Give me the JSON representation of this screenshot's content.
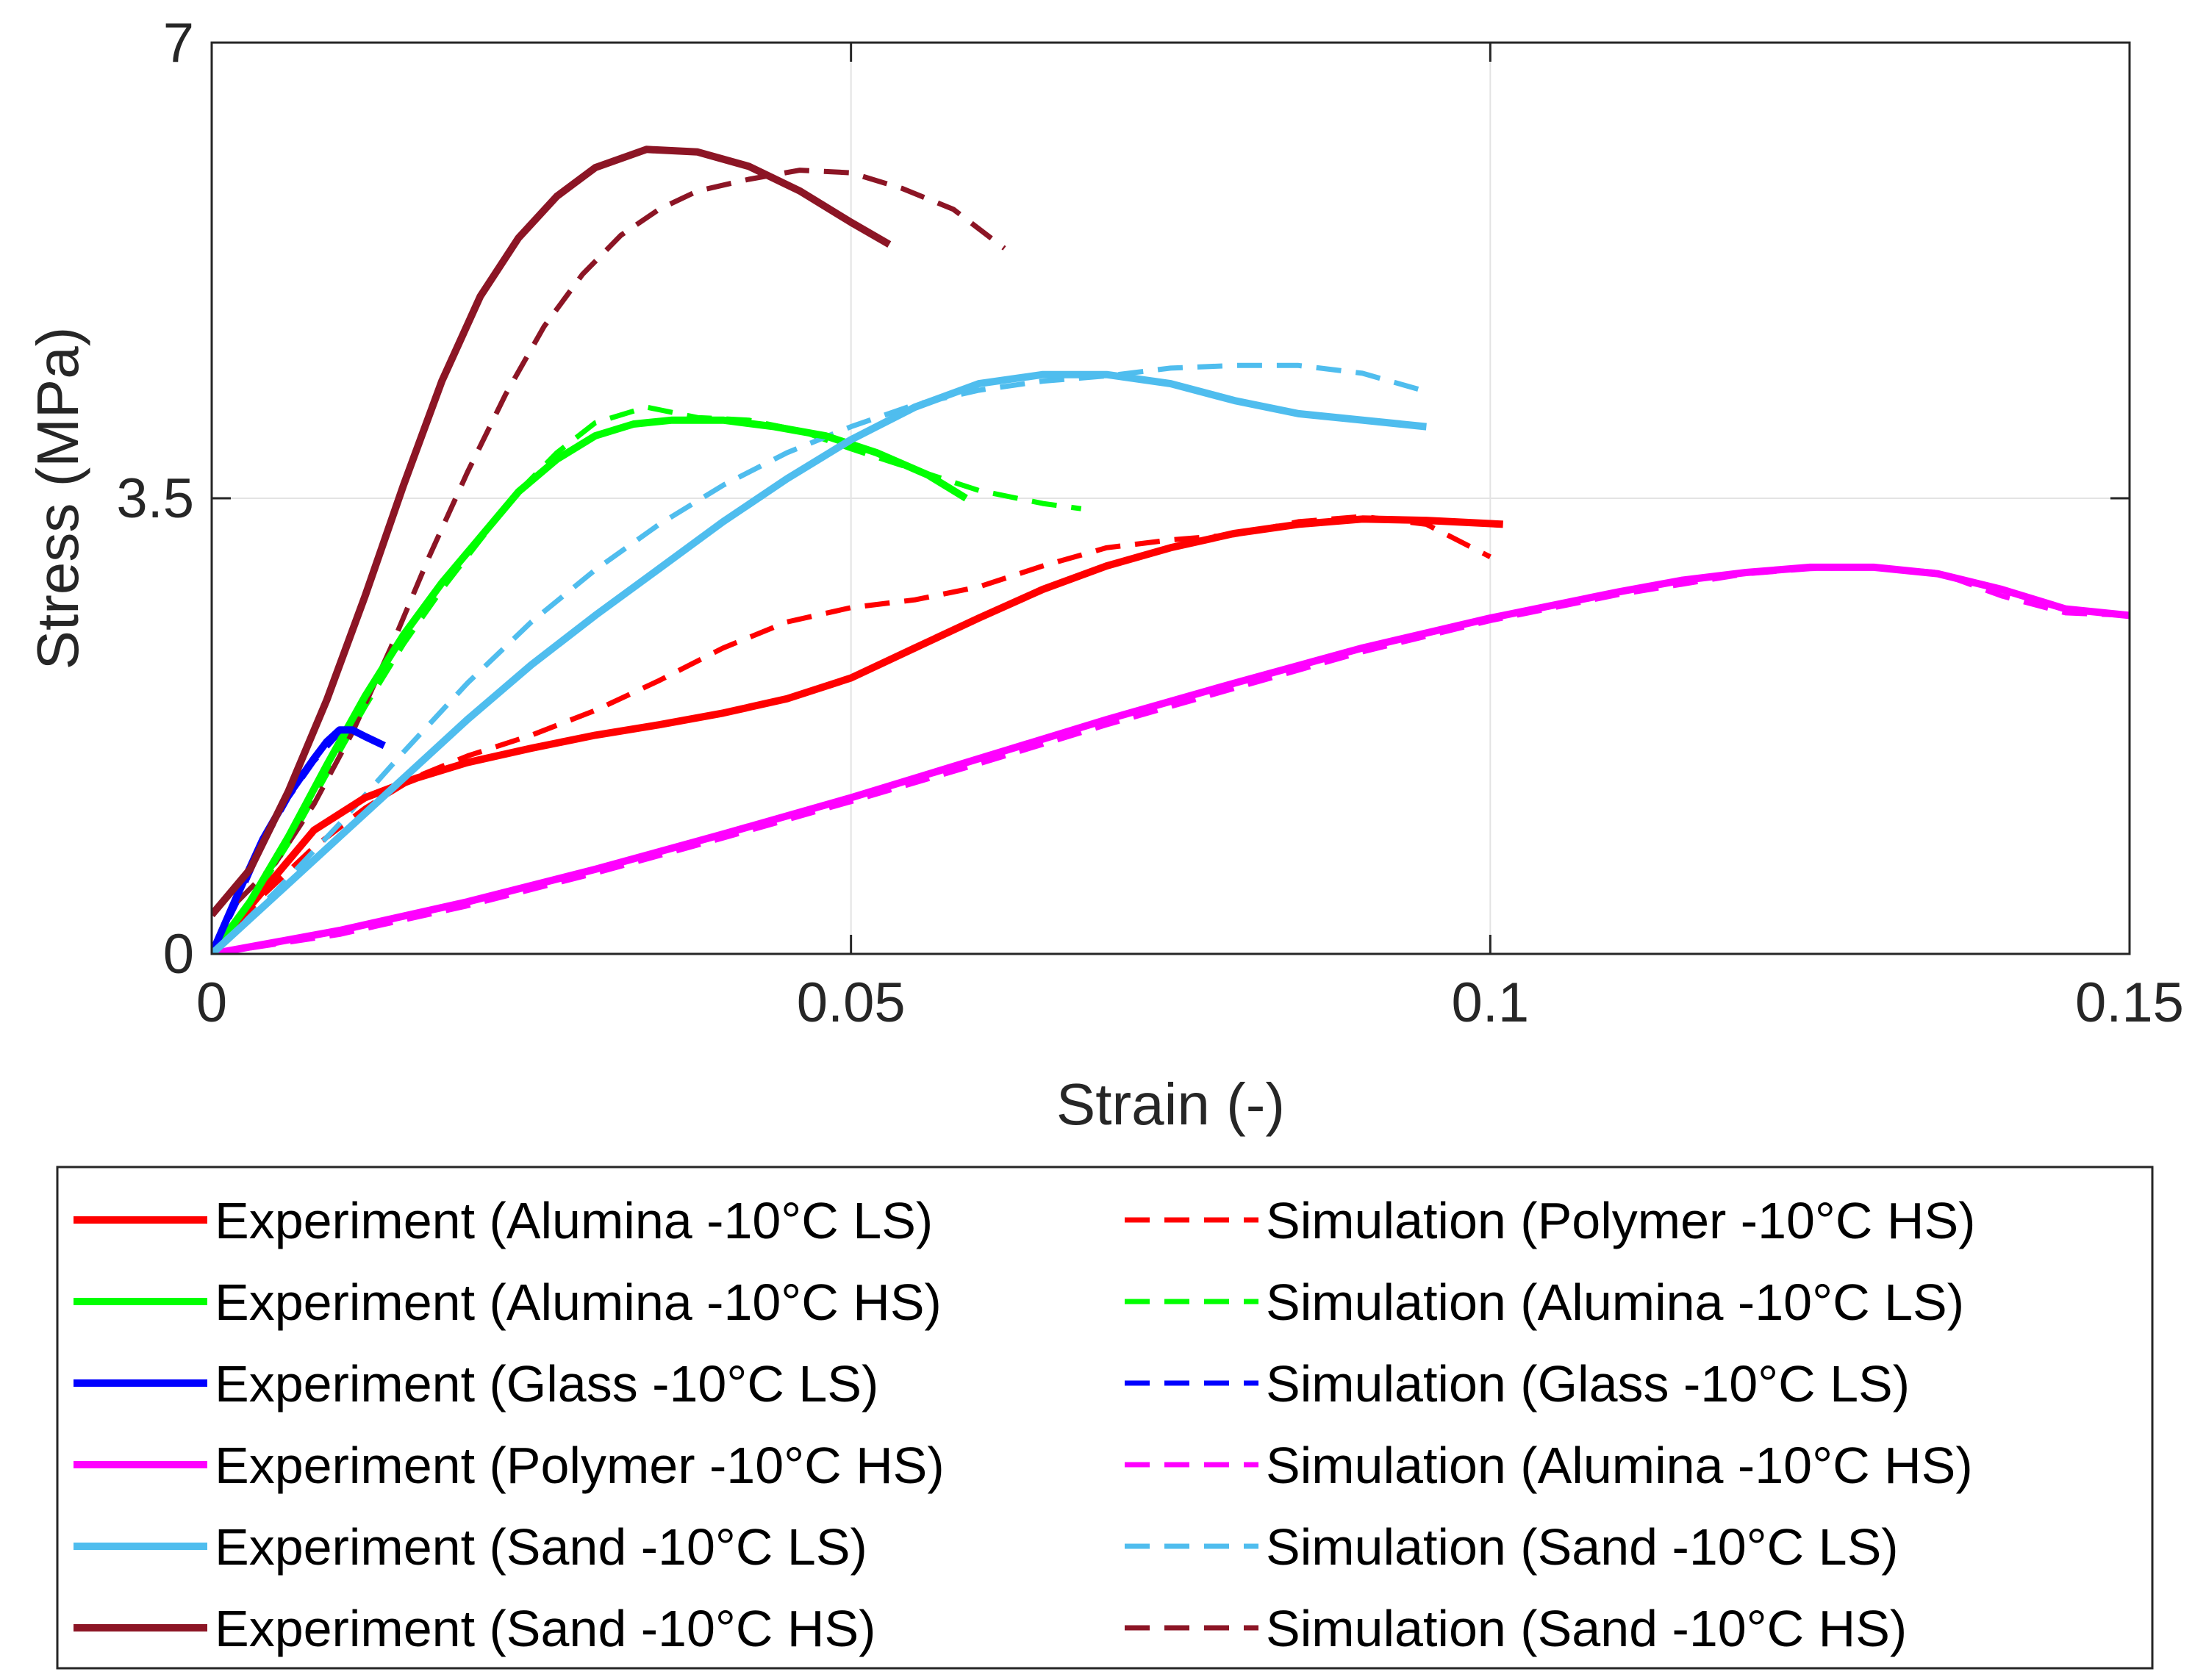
{
  "chart_data": {
    "type": "line",
    "xlabel": "Strain (-)",
    "ylabel": "Stress (MPa)",
    "xlim": [
      0,
      0.15
    ],
    "ylim": [
      0,
      7
    ],
    "xticks": [
      0,
      0.05,
      0.1,
      0.15
    ],
    "xtick_labels": [
      "0",
      "0.05",
      "0.1",
      "0.15"
    ],
    "yticks": [
      0,
      3.5,
      7
    ],
    "ytick_labels": [
      "0",
      "3.5",
      "7"
    ],
    "grid": true,
    "legend_position": "bottom",
    "series": [
      {
        "name": "Experiment (Alumina -10°C LS)",
        "color": "#ff0000",
        "style": "solid",
        "x": [
          0,
          0.002,
          0.005,
          0.008,
          0.012,
          0.016,
          0.02,
          0.025,
          0.03,
          0.035,
          0.04,
          0.045,
          0.05,
          0.055,
          0.06,
          0.065,
          0.07,
          0.075,
          0.08,
          0.085,
          0.09,
          0.095,
          0.101
        ],
        "y": [
          0,
          0.25,
          0.6,
          0.95,
          1.2,
          1.35,
          1.47,
          1.58,
          1.68,
          1.76,
          1.85,
          1.96,
          2.12,
          2.35,
          2.58,
          2.8,
          2.98,
          3.12,
          3.23,
          3.3,
          3.34,
          3.33,
          3.3
        ]
      },
      {
        "name": "Experiment (Alumina -10°C HS)",
        "color": "#00ff00",
        "style": "solid",
        "x": [
          0,
          0.003,
          0.006,
          0.009,
          0.012,
          0.015,
          0.018,
          0.021,
          0.024,
          0.027,
          0.03,
          0.033,
          0.036,
          0.04,
          0.044,
          0.048,
          0.052,
          0.056,
          0.059
        ],
        "y": [
          0,
          0.4,
          0.9,
          1.45,
          1.98,
          2.45,
          2.85,
          3.2,
          3.55,
          3.8,
          3.98,
          4.07,
          4.1,
          4.1,
          4.05,
          3.98,
          3.85,
          3.68,
          3.5
        ]
      },
      {
        "name": "Experiment (Glass -10°C LS)",
        "color": "#0000ff",
        "style": "solid",
        "x": [
          0,
          0.002,
          0.004,
          0.006,
          0.008,
          0.009,
          0.01,
          0.011,
          0.012,
          0.0135
        ],
        "y": [
          0,
          0.45,
          0.88,
          1.22,
          1.5,
          1.63,
          1.72,
          1.72,
          1.67,
          1.6
        ]
      },
      {
        "name": "Experiment (Polymer -10°C HS)",
        "color": "#ff00ff",
        "style": "solid",
        "x": [
          0,
          0.01,
          0.02,
          0.03,
          0.04,
          0.05,
          0.06,
          0.07,
          0.08,
          0.09,
          0.1,
          0.11,
          0.115,
          0.12,
          0.125,
          0.13,
          0.135,
          0.14,
          0.145,
          0.15
        ],
        "y": [
          0,
          0.18,
          0.4,
          0.65,
          0.92,
          1.2,
          1.5,
          1.8,
          2.08,
          2.35,
          2.58,
          2.78,
          2.87,
          2.93,
          2.97,
          2.97,
          2.92,
          2.8,
          2.65,
          2.6
        ]
      },
      {
        "name": "Experiment (Sand -10°C LS)",
        "color": "#4fbdee",
        "style": "solid",
        "x": [
          0,
          0.005,
          0.01,
          0.015,
          0.02,
          0.025,
          0.03,
          0.035,
          0.04,
          0.045,
          0.05,
          0.055,
          0.06,
          0.065,
          0.07,
          0.075,
          0.08,
          0.085,
          0.09,
          0.095
        ],
        "y": [
          0,
          0.45,
          0.9,
          1.35,
          1.8,
          2.22,
          2.6,
          2.96,
          3.32,
          3.65,
          3.95,
          4.2,
          4.38,
          4.45,
          4.45,
          4.38,
          4.25,
          4.15,
          4.1,
          4.05
        ]
      },
      {
        "name": "Experiment (Sand -10°C HS)",
        "color": "#8c1525",
        "style": "solid",
        "x": [
          0,
          0.003,
          0.006,
          0.009,
          0.012,
          0.015,
          0.018,
          0.021,
          0.024,
          0.027,
          0.03,
          0.034,
          0.038,
          0.042,
          0.046,
          0.05,
          0.053
        ],
        "y": [
          0.3,
          0.65,
          1.25,
          1.95,
          2.75,
          3.6,
          4.4,
          5.05,
          5.5,
          5.82,
          6.04,
          6.18,
          6.16,
          6.05,
          5.86,
          5.62,
          5.45
        ]
      },
      {
        "name": "Simulation (Polymer -10°C HS)",
        "color": "#ff0000",
        "style": "dashed",
        "x": [
          0,
          0.004,
          0.008,
          0.012,
          0.016,
          0.02,
          0.025,
          0.03,
          0.035,
          0.04,
          0.045,
          0.05,
          0.055,
          0.06,
          0.065,
          0.07,
          0.075,
          0.08,
          0.085,
          0.09,
          0.095,
          0.1
        ],
        "y": [
          0,
          0.45,
          0.82,
          1.12,
          1.36,
          1.52,
          1.68,
          1.87,
          2.1,
          2.35,
          2.55,
          2.66,
          2.72,
          2.82,
          2.98,
          3.12,
          3.18,
          3.22,
          3.32,
          3.36,
          3.3,
          3.05
        ]
      },
      {
        "name": "Simulation (Alumina -10°C LS)",
        "color": "#00ff00",
        "style": "dashed",
        "x": [
          0,
          0.003,
          0.006,
          0.009,
          0.012,
          0.015,
          0.018,
          0.021,
          0.024,
          0.027,
          0.03,
          0.034,
          0.038,
          0.042,
          0.046,
          0.05,
          0.055,
          0.06,
          0.065,
          0.068
        ],
        "y": [
          0,
          0.38,
          0.85,
          1.38,
          1.9,
          2.38,
          2.8,
          3.18,
          3.55,
          3.85,
          4.08,
          4.2,
          4.12,
          4.1,
          4.02,
          3.88,
          3.72,
          3.56,
          3.46,
          3.42
        ]
      },
      {
        "name": "Simulation (Glass -10°C LS)",
        "color": "#0000ff",
        "style": "dashed",
        "x": [
          0,
          0.002,
          0.004,
          0.006,
          0.008,
          0.01
        ],
        "y": [
          0,
          0.4,
          0.85,
          1.2,
          1.48,
          1.7
        ]
      },
      {
        "name": "Simulation (Alumina -10°C HS)",
        "color": "#ff00ff",
        "style": "dashed",
        "x": [
          0,
          0.01,
          0.02,
          0.03,
          0.04,
          0.05,
          0.06,
          0.07,
          0.08,
          0.09,
          0.1,
          0.11,
          0.12,
          0.125,
          0.13,
          0.135,
          0.14,
          0.145,
          0.15
        ],
        "y": [
          0,
          0.15,
          0.37,
          0.62,
          0.89,
          1.17,
          1.46,
          1.76,
          2.04,
          2.32,
          2.56,
          2.76,
          2.92,
          2.96,
          2.97,
          2.93,
          2.75,
          2.62,
          2.6
        ]
      },
      {
        "name": "Simulation (Sand -10°C LS)",
        "color": "#4fbdee",
        "style": "dashed",
        "x": [
          0,
          0.005,
          0.01,
          0.015,
          0.02,
          0.025,
          0.03,
          0.035,
          0.04,
          0.045,
          0.05,
          0.055,
          0.06,
          0.065,
          0.07,
          0.075,
          0.08,
          0.085,
          0.09,
          0.095
        ],
        "y": [
          0,
          0.48,
          1.0,
          1.55,
          2.08,
          2.55,
          2.95,
          3.3,
          3.6,
          3.85,
          4.05,
          4.22,
          4.33,
          4.4,
          4.44,
          4.5,
          4.52,
          4.52,
          4.46,
          4.32
        ]
      },
      {
        "name": "Simulation (Sand -10°C HS)",
        "color": "#8c1525",
        "style": "dashed",
        "x": [
          0.002,
          0.005,
          0.008,
          0.011,
          0.014,
          0.017,
          0.02,
          0.023,
          0.026,
          0.029,
          0.032,
          0.035,
          0.038,
          0.042,
          0.046,
          0.05,
          0.054,
          0.058,
          0.062
        ],
        "y": [
          0.4,
          0.7,
          1.15,
          1.7,
          2.35,
          3.05,
          3.7,
          4.3,
          4.82,
          5.22,
          5.52,
          5.72,
          5.86,
          5.95,
          6.02,
          6.0,
          5.88,
          5.72,
          5.42
        ]
      }
    ]
  }
}
